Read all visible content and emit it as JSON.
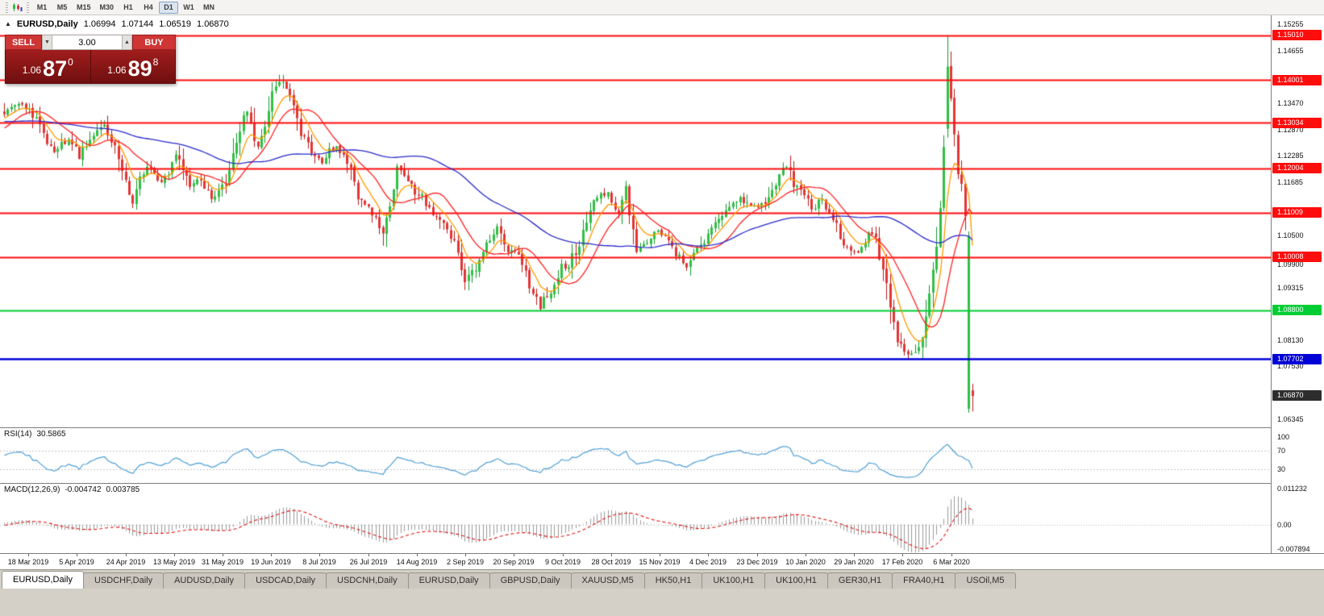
{
  "toolbar": {
    "timeframes": [
      "M1",
      "M5",
      "M15",
      "M30",
      "H1",
      "H4",
      "D1",
      "W1",
      "MN"
    ],
    "active_timeframe": "D1"
  },
  "chart": {
    "title": "EURUSD,Daily",
    "collapse_icon": "▲",
    "ohlc": {
      "open": "1.06994",
      "high": "1.07144",
      "low": "1.06519",
      "close": "1.06870"
    },
    "trade_panel": {
      "sell_label": "SELL",
      "buy_label": "BUY",
      "volume": "3.00",
      "dec_icon": "▼",
      "inc_icon": "▲",
      "sell_price": {
        "big": "1.06",
        "pips": "87",
        "sup": "0"
      },
      "buy_price": {
        "big": "1.06",
        "pips": "89",
        "sup": "8"
      }
    },
    "levels": [
      {
        "price": 1.1501,
        "label": "1.15010",
        "color": "red"
      },
      {
        "price": 1.14001,
        "label": "1.14001",
        "color": "red"
      },
      {
        "price": 1.13034,
        "label": "1.13034",
        "color": "red"
      },
      {
        "price": 1.12004,
        "label": "1.12004",
        "color": "red"
      },
      {
        "price": 1.11009,
        "label": "1.11009",
        "color": "red"
      },
      {
        "price": 1.10008,
        "label": "1.10008",
        "color": "red"
      },
      {
        "price": 1.088,
        "label": "1.08800",
        "color": "green"
      },
      {
        "price": 1.07702,
        "label": "1.07702",
        "color": "blue"
      }
    ],
    "current_price": {
      "price": 1.0687,
      "label": "1.06870"
    },
    "price_axis_ticks": [
      {
        "v": 1.15255,
        "label": "1.15255"
      },
      {
        "v": 1.14655,
        "label": "1.14655"
      },
      {
        "v": 1.1347,
        "label": "1.13470"
      },
      {
        "v": 1.1287,
        "label": "1.12870"
      },
      {
        "v": 1.12285,
        "label": "1.12285"
      },
      {
        "v": 1.11685,
        "label": "1.11685"
      },
      {
        "v": 1.105,
        "label": "1.10500"
      },
      {
        "v": 1.099,
        "label": "1.09900"
      },
      {
        "v": 1.09315,
        "label": "1.09315"
      },
      {
        "v": 1.0813,
        "label": "1.08130"
      },
      {
        "v": 1.0753,
        "label": "1.07530"
      },
      {
        "v": 1.06345,
        "label": "1.06345"
      }
    ]
  },
  "rsi": {
    "name": "RSI(14)",
    "value": "30.5865",
    "period": 14,
    "levels": [
      {
        "v": 100,
        "label": "100"
      },
      {
        "v": 70,
        "label": "70"
      },
      {
        "v": 30,
        "label": "30"
      }
    ]
  },
  "macd": {
    "name": "MACD(12,26,9)",
    "value1": "-0.004742",
    "value2": "0.003785",
    "axis": [
      {
        "v": 0.011232,
        "label": "0.011232"
      },
      {
        "v": 0,
        "label": "0.00"
      },
      {
        "v": -0.007894,
        "label": "-0.007894"
      }
    ]
  },
  "dates": [
    "18 Mar 2019",
    "5 Apr 2019",
    "24 Apr 2019",
    "13 May 2019",
    "31 May 2019",
    "19 Jun 2019",
    "8 Jul 2019",
    "26 Jul 2019",
    "14 Aug 2019",
    "2 Sep 2019",
    "20 Sep 2019",
    "9 Oct 2019",
    "28 Oct 2019",
    "15 Nov 2019",
    "4 Dec 2019",
    "23 Dec 2019",
    "10 Jan 2020",
    "29 Jan 2020",
    "17 Feb 2020",
    "6 Mar 2020"
  ],
  "tabs": [
    {
      "label": "EURUSD,Daily",
      "active": true
    },
    {
      "label": "USDCHF,Daily",
      "active": false
    },
    {
      "label": "AUDUSD,Daily",
      "active": false
    },
    {
      "label": "USDCAD,Daily",
      "active": false
    },
    {
      "label": "USDCNH,Daily",
      "active": false
    },
    {
      "label": "EURUSD,Daily",
      "active": false
    },
    {
      "label": "GBPUSD,Daily",
      "active": false
    },
    {
      "label": "XAUUSD,M5",
      "active": false
    },
    {
      "label": "HK50,H1",
      "active": false
    },
    {
      "label": "UK100,H1",
      "active": false
    },
    {
      "label": "UK100,H1",
      "active": false
    },
    {
      "label": "GER30,H1",
      "active": false
    },
    {
      "label": "FRA40,H1",
      "active": false
    },
    {
      "label": "USOil,M5",
      "active": false
    }
  ],
  "colors": {
    "bull": "#2fc043",
    "bull_border": "#0f9a2c",
    "bear": "#e23535",
    "bear_border": "#b91c1c",
    "level_red": "#fe0d0d",
    "level_green": "#00cd33",
    "level_blue": "#0202d6",
    "current_tag": "#2d2d2d",
    "rsi_line": "#4e9fd6",
    "macd_hist": "#9c9c9c",
    "macd_signal": "#e01414"
  },
  "chart_data": {
    "type": "candlestick",
    "symbol": "EURUSD",
    "timeframe": "Daily",
    "candle_count": 272,
    "seed": 1337,
    "first_label_index": 7,
    "label_step": 13.6,
    "price_range": [
      1.0616,
      1.1546
    ],
    "pre_anchors": [
      [
        -60,
        1.136
      ],
      [
        -40,
        1.13
      ],
      [
        -25,
        1.133
      ],
      [
        -12,
        1.125
      ],
      [
        -6,
        1.13
      ]
    ],
    "anchors": [
      [
        0,
        1.133
      ],
      [
        3,
        1.1345
      ],
      [
        7,
        1.1335
      ],
      [
        11,
        1.128
      ],
      [
        14,
        1.124
      ],
      [
        18,
        1.1265
      ],
      [
        21,
        1.1225
      ],
      [
        25,
        1.128
      ],
      [
        28,
        1.13
      ],
      [
        32,
        1.122
      ],
      [
        36,
        1.1125
      ],
      [
        38,
        1.118
      ],
      [
        41,
        1.12
      ],
      [
        44,
        1.117
      ],
      [
        48,
        1.123
      ],
      [
        52,
        1.116
      ],
      [
        55,
        1.118
      ],
      [
        58,
        1.113
      ],
      [
        62,
        1.117
      ],
      [
        64,
        1.122
      ],
      [
        66,
        1.129
      ],
      [
        68,
        1.133
      ],
      [
        71,
        1.125
      ],
      [
        73,
        1.129
      ],
      [
        75,
        1.138
      ],
      [
        77,
        1.1395
      ],
      [
        80,
        1.137
      ],
      [
        83,
        1.128
      ],
      [
        86,
        1.123
      ],
      [
        89,
        1.122
      ],
      [
        93,
        1.125
      ],
      [
        96,
        1.1215
      ],
      [
        99,
        1.114
      ],
      [
        102,
        1.112
      ],
      [
        106,
        1.106
      ],
      [
        108,
        1.111
      ],
      [
        110,
        1.12
      ],
      [
        113,
        1.118
      ],
      [
        116,
        1.114
      ],
      [
        119,
        1.111
      ],
      [
        122,
        1.1085
      ],
      [
        126,
        1.104
      ],
      [
        129,
        1.094
      ],
      [
        132,
        1.098
      ],
      [
        135,
        1.103
      ],
      [
        138,
        1.106
      ],
      [
        141,
        1.1005
      ],
      [
        144,
        1.101
      ],
      [
        147,
        1.093
      ],
      [
        150,
        1.089
      ],
      [
        153,
        1.093
      ],
      [
        156,
        1.0985
      ],
      [
        158,
        1.0975
      ],
      [
        161,
        1.104
      ],
      [
        164,
        1.111
      ],
      [
        167,
        1.115
      ],
      [
        170,
        1.113
      ],
      [
        172,
        1.1105
      ],
      [
        174,
        1.1155
      ],
      [
        177,
        1.102
      ],
      [
        180,
        1.1035
      ],
      [
        183,
        1.106
      ],
      [
        185,
        1.105
      ],
      [
        188,
        1.1005
      ],
      [
        191,
        1.0985
      ],
      [
        194,
        1.102
      ],
      [
        197,
        1.1055
      ],
      [
        199,
        1.108
      ],
      [
        202,
        1.11
      ],
      [
        205,
        1.1135
      ],
      [
        208,
        1.112
      ],
      [
        211,
        1.111
      ],
      [
        213,
        1.112
      ],
      [
        216,
        1.116
      ],
      [
        219,
        1.121
      ],
      [
        221,
        1.117
      ],
      [
        224,
        1.114
      ],
      [
        226,
        1.111
      ],
      [
        229,
        1.113
      ],
      [
        232,
        1.109
      ],
      [
        235,
        1.103
      ],
      [
        238,
        1.101
      ],
      [
        240,
        1.1015
      ],
      [
        242,
        1.106
      ],
      [
        244,
        1.104
      ],
      [
        246,
        1.098
      ],
      [
        248,
        1.089
      ],
      [
        250,
        1.082
      ],
      [
        252,
        1.079
      ],
      [
        254,
        1.0785
      ],
      [
        256,
        1.08
      ],
      [
        258,
        1.087
      ],
      [
        260,
        1.096
      ],
      [
        262,
        1.108
      ],
      [
        263,
        1.126
      ],
      [
        264,
        1.143
      ],
      [
        265,
        1.135
      ],
      [
        266,
        1.128
      ],
      [
        267,
        1.12
      ],
      [
        268,
        1.115
      ],
      [
        269,
        1.111
      ],
      [
        270,
        1.1048
      ],
      [
        271,
        1.0687
      ]
    ],
    "overrides": {
      "77": {
        "h": 1.1412
      },
      "106": {
        "l": 1.1026
      },
      "129": {
        "l": 1.0926
      },
      "150": {
        "l": 1.0879
      },
      "252": {
        "l": 1.0778
      },
      "264": {
        "o": 1.129,
        "h": 1.1501,
        "l": 1.127,
        "c": 1.143
      },
      "270": {
        "o": 1.0658,
        "h": 1.1058,
        "l": 1.0649,
        "c": 1.1048
      },
      "271": {
        "o": 1.06994,
        "h": 1.07144,
        "l": 1.06519,
        "c": 1.0687
      }
    },
    "moving_averages": [
      {
        "name": "fast",
        "type": "ema",
        "period": 7,
        "color": "#ff9a00"
      },
      {
        "name": "medium",
        "type": "sma",
        "period": 14,
        "color": "#ff2121"
      },
      {
        "name": "slow",
        "type": "sma",
        "period": 55,
        "color": "#2b2bcc"
      }
    ],
    "indicators": [
      {
        "name": "RSI",
        "period": 14,
        "last": 30.5865
      },
      {
        "name": "MACD",
        "fast": 12,
        "slow": 26,
        "signal": 9,
        "last_macd": -0.004742,
        "last_signal": 0.003785
      }
    ]
  }
}
